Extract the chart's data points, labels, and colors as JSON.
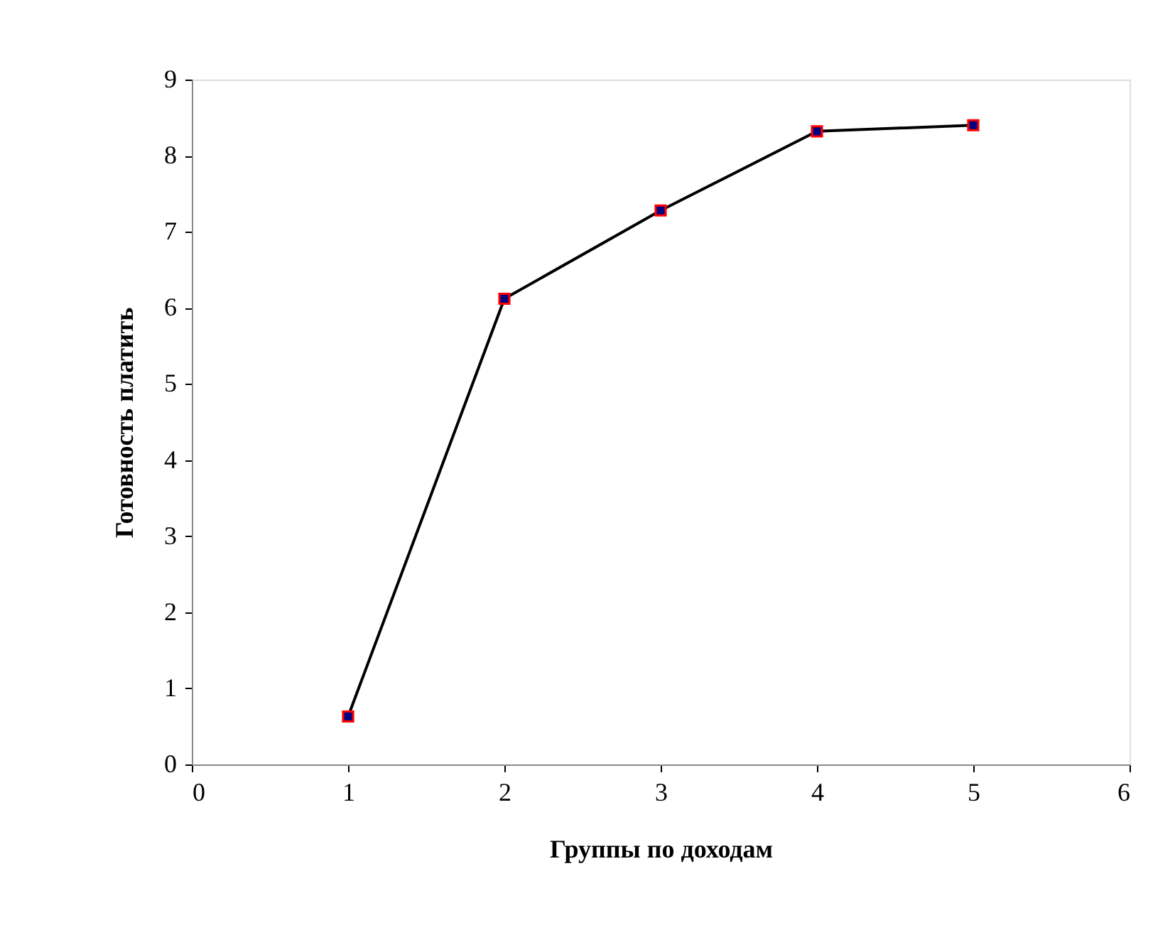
{
  "chart_data": {
    "type": "line",
    "xlabel": "Группы по доходам",
    "ylabel": "Готовность платить",
    "x": [
      1,
      2,
      3,
      4,
      5
    ],
    "series": [
      {
        "color": "#000000",
        "values": [
          0.63,
          6.12,
          7.28,
          8.32,
          8.4
        ]
      }
    ],
    "xlim": [
      0,
      6
    ],
    "xticks": [
      0,
      1,
      2,
      3,
      4,
      5,
      6
    ],
    "ylim": [
      0,
      9
    ],
    "yticks": [
      0,
      1,
      2,
      3,
      4,
      5,
      6,
      7,
      8,
      9
    ],
    "grid": false,
    "marker": "square",
    "line_style": "solid"
  }
}
